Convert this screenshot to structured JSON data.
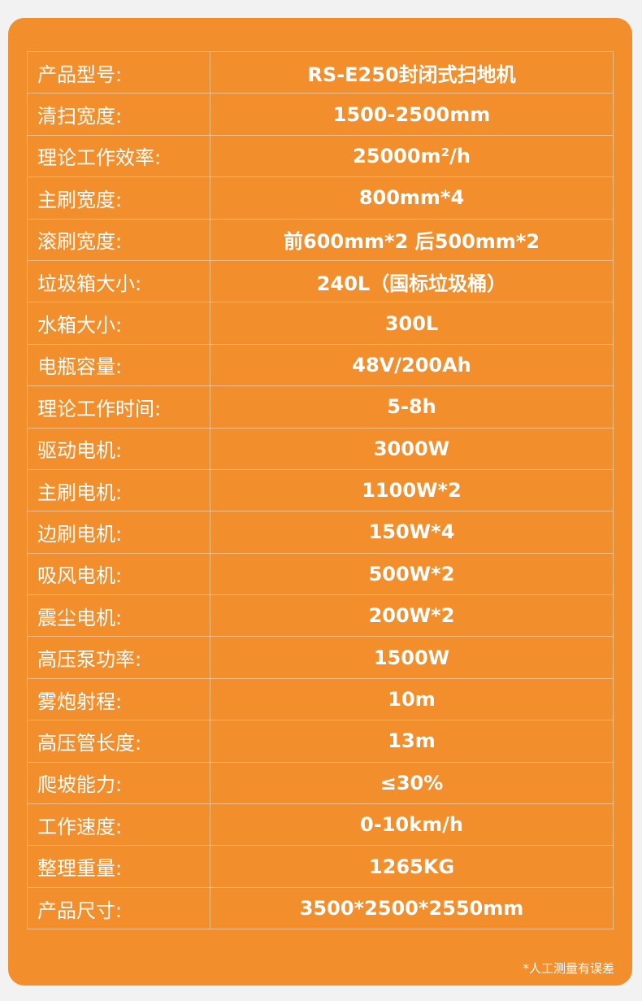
{
  "specs": [
    {
      "label": "产品型号:",
      "value": "RS-E250封闭式扫地机"
    },
    {
      "label": "清扫宽度:",
      "value": "1500-2500mm"
    },
    {
      "label": "理论工作效率:",
      "value": "25000m²/h"
    },
    {
      "label": "主刷宽度:",
      "value": "800mm*4"
    },
    {
      "label": "滚刷宽度:",
      "value": "前600mm*2 后500mm*2"
    },
    {
      "label": "垃圾箱大小:",
      "value": "240L（国标垃圾桶）"
    },
    {
      "label": "水箱大小:",
      "value": "300L"
    },
    {
      "label": "电瓶容量:",
      "value": "48V/200Ah"
    },
    {
      "label": "理论工作时间:",
      "value": "5-8h"
    },
    {
      "label": "驱动电机:",
      "value": "3000W"
    },
    {
      "label": "主刷电机:",
      "value": "1100W*2"
    },
    {
      "label": "边刷电机:",
      "value": "150W*4"
    },
    {
      "label": "吸风电机:",
      "value": "500W*2"
    },
    {
      "label": "震尘电机:",
      "value": "200W*2"
    },
    {
      "label": "高压泵功率:",
      "value": "1500W"
    },
    {
      "label": "雾炮射程:",
      "value": "10m"
    },
    {
      "label": "高压管长度:",
      "value": "13m"
    },
    {
      "label": "爬坡能力:",
      "value": "≤30%"
    },
    {
      "label": "工作速度:",
      "value": "0-10km/h"
    },
    {
      "label": "整理重量:",
      "value": "1265KG"
    },
    {
      "label": "产品尺寸:",
      "value": "3500*2500*2550mm"
    }
  ],
  "footnote": "*人工测量有误差",
  "colors": {
    "card": "#f28f2c",
    "border": "#f6bf8a",
    "text": "#ffffff"
  }
}
